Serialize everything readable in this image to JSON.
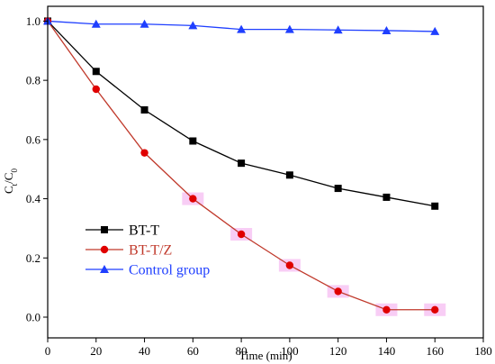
{
  "chart_data": {
    "type": "line",
    "title": "",
    "xlabel": "Time (min)",
    "ylabel_main": "C",
    "ylabel_sub_t": "t",
    "ylabel_slash": "/C",
    "ylabel_sub_0": "0",
    "xlim": [
      0,
      180
    ],
    "ylim": [
      -0.07,
      1.05
    ],
    "xticks": [
      0,
      20,
      40,
      60,
      80,
      100,
      120,
      140,
      160,
      180
    ],
    "yticks": [
      0.0,
      0.2,
      0.4,
      0.6,
      0.8,
      1.0
    ],
    "xtick_labels": [
      "0",
      "20",
      "40",
      "60",
      "80",
      "100",
      "120",
      "140",
      "160",
      "180"
    ],
    "ytick_labels": [
      "0.0",
      "0.2",
      "0.4",
      "0.6",
      "0.8",
      "1.0"
    ],
    "grid": false,
    "legend_position": "bottom-left",
    "x": [
      0,
      20,
      40,
      60,
      80,
      100,
      120,
      140,
      160
    ],
    "series": [
      {
        "name": "BT-T",
        "color": "#000000",
        "marker": "square",
        "values": [
          1.0,
          0.83,
          0.7,
          0.595,
          0.52,
          0.48,
          0.435,
          0.405,
          0.375
        ]
      },
      {
        "name": "BT-T/Z",
        "color": "#c0392b",
        "marker": "circle",
        "marker_color": "#e00000",
        "highlight_color": "#f7c4f3",
        "values": [
          1.0,
          0.77,
          0.555,
          0.4,
          0.28,
          0.175,
          0.087,
          0.025,
          0.025
        ]
      },
      {
        "name": "Control group",
        "color": "#1f3fff",
        "marker": "triangle",
        "values": [
          1.0,
          0.99,
          0.99,
          0.985,
          0.972,
          0.972,
          0.97,
          0.968,
          0.965
        ]
      }
    ]
  }
}
